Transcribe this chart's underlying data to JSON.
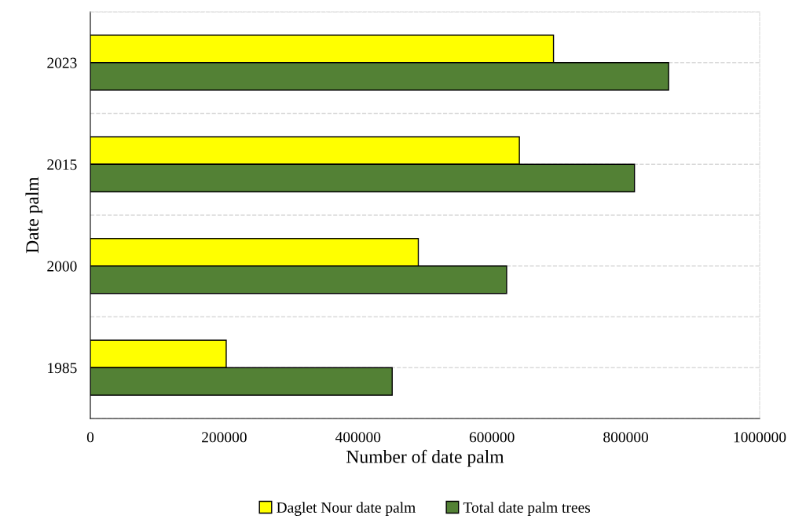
{
  "chart_data": {
    "type": "bar",
    "orientation": "horizontal",
    "xlabel": "Number of date palm",
    "ylabel": "Date palm",
    "categories": [
      "2023",
      "2015",
      "2000",
      "1985"
    ],
    "series": [
      {
        "name": "Daglet Nour date palm",
        "color": "#ffff00",
        "values": [
          692000,
          641000,
          490000,
          203000
        ]
      },
      {
        "name": "Total date palm trees",
        "color": "#538135",
        "values": [
          864000,
          813000,
          622000,
          451000
        ]
      }
    ],
    "xlim": [
      0,
      1000000
    ],
    "xticks": [
      0,
      200000,
      400000,
      600000,
      800000,
      1000000
    ],
    "grid": "y",
    "legend": "bottom"
  }
}
